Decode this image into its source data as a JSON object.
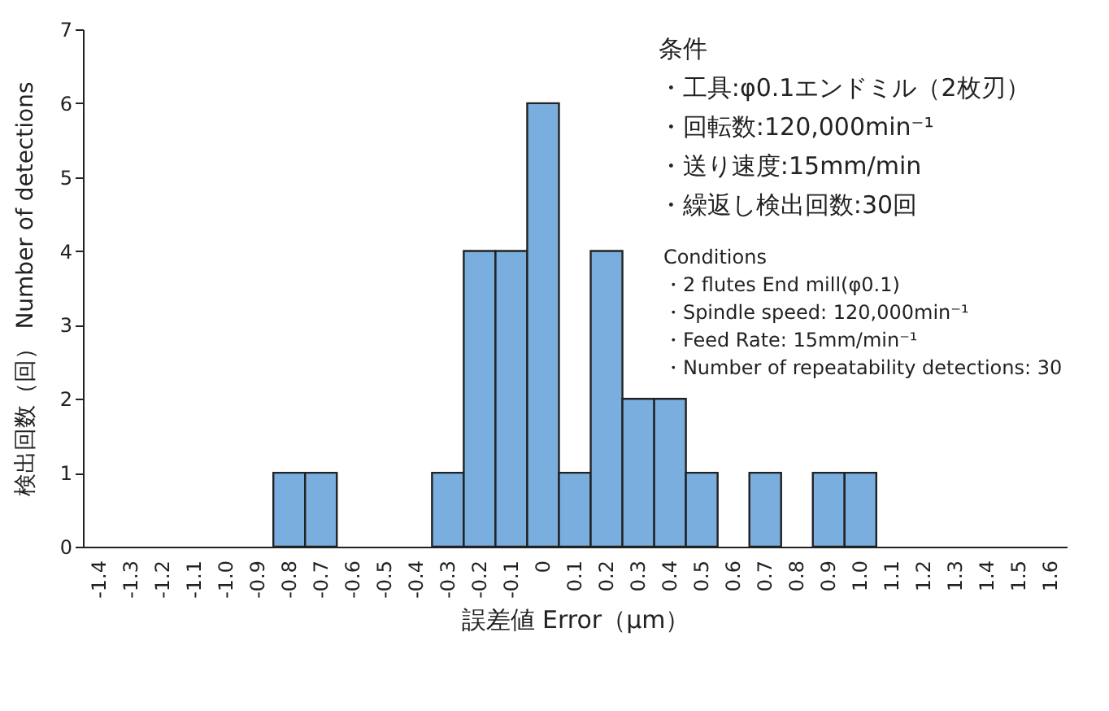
{
  "chart_data": {
    "type": "bar",
    "xlabel": "誤差値 Error（μm）",
    "ylabel": "検出回数（回） Number of detections",
    "categories": [
      "-1.4",
      "-1.3",
      "-1.2",
      "-1.1",
      "-1.0",
      "-0.9",
      "-0.8",
      "-0.7",
      "-0.6",
      "-0.5",
      "-0.4",
      "-0.3",
      "-0.2",
      "-0.1",
      "0",
      "0.1",
      "0.2",
      "0.3",
      "0.4",
      "0.5",
      "0.6",
      "0.7",
      "0.8",
      "0.9",
      "1.0",
      "1.1",
      "1.2",
      "1.3",
      "1.4",
      "1.5",
      "1.6"
    ],
    "values": [
      0,
      0,
      0,
      0,
      0,
      0,
      1,
      1,
      0,
      0,
      0,
      1,
      4,
      4,
      6,
      1,
      4,
      2,
      2,
      1,
      0,
      1,
      0,
      1,
      1,
      0,
      0,
      0,
      0,
      0,
      0
    ],
    "color": "#7aaede",
    "ylim": [
      0,
      7
    ],
    "yticks": [
      0,
      1,
      2,
      3,
      4,
      5,
      6,
      7
    ],
    "grid": false,
    "annotations": [
      "条件",
      "・工具:φ0.1エンドミル（2枚刃）",
      "・回転数:120,000min⁻¹",
      "・送り速度:15mm/min",
      "・繰返し検出回数:30回",
      "Conditions",
      "・2 flutes End mill(φ0.1)",
      "・Spindle speed: 120,000min⁻¹",
      "・Feed Rate: 15mm/min⁻¹",
      "・Number of repeatability detections: 30"
    ]
  }
}
